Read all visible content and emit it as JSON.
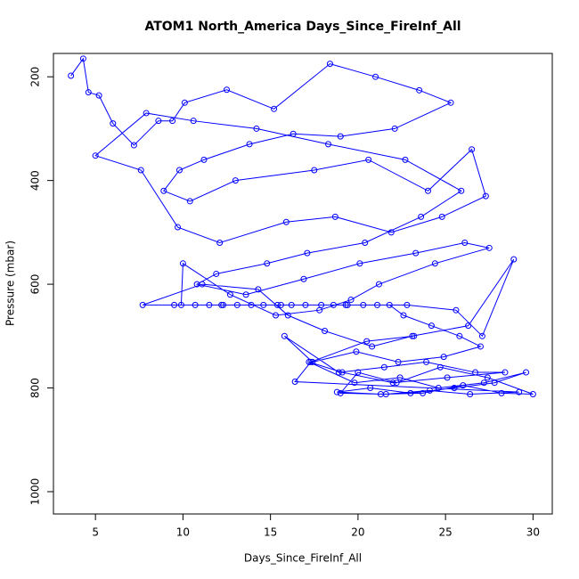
{
  "chart_data": {
    "type": "line",
    "title": "ATOM1 North_America Days_Since_FireInf_All",
    "x_label": "Days_Since_FireInf_All",
    "y_label": "Pressure (mbar)",
    "xlim": [
      2.6,
      31.1
    ],
    "ylim": [
      1043,
      155
    ],
    "xticks": [
      5,
      10,
      15,
      20,
      25,
      30
    ],
    "yticks": [
      200,
      400,
      600,
      800,
      1000
    ],
    "markers": true,
    "x": [
      3.6,
      4.3,
      4.6,
      5.2,
      6.0,
      7.2,
      8.6,
      9.4,
      10.1,
      12.5,
      15.2,
      18.4,
      21.0,
      23.5,
      25.3,
      22.1,
      19.0,
      16.3,
      13.8,
      11.2,
      9.8,
      8.9,
      10.4,
      13.0,
      17.5,
      20.6,
      24.0,
      26.5,
      27.3,
      24.8,
      21.9,
      18.7,
      15.9,
      12.1,
      9.7,
      7.6,
      5.0,
      7.9,
      10.6,
      14.2,
      18.3,
      22.7,
      25.9,
      23.6,
      20.4,
      17.1,
      14.8,
      11.9,
      10.8,
      13.6,
      16.9,
      20.1,
      23.3,
      26.1,
      27.5,
      24.4,
      21.2,
      19.6,
      17.8,
      15.3,
      12.7,
      10.0,
      9.9,
      12.2,
      15.6,
      19.3,
      22.8,
      25.6,
      27.1,
      28.9,
      26.3,
      23.1,
      20.8,
      18.1,
      16.0,
      14.3,
      11.1,
      7.7,
      9.5,
      10.7,
      11.5,
      12.3,
      13.1,
      13.9,
      14.6,
      15.4,
      16.2,
      17.0,
      17.9,
      18.6,
      19.4,
      20.3,
      21.1,
      21.8,
      22.6,
      24.2,
      25.8,
      27.0,
      24.9,
      22.3,
      19.9,
      17.4,
      15.8,
      18.9,
      21.5,
      23.9,
      26.7,
      28.4,
      25.1,
      22.0,
      19.1,
      17.2,
      19.8,
      22.4,
      24.6,
      27.2,
      29.6,
      27.8,
      25.5,
      23.0,
      20.7,
      18.8,
      21.3,
      23.7,
      26.0,
      28.2,
      30.0,
      27.4,
      24.7,
      22.2,
      20.0,
      19.0,
      21.6,
      24.1,
      26.4,
      29.2,
      16.4,
      17.3,
      20.5,
      23.2
    ],
    "series": [
      {
        "color": "#0000ff",
        "values": [
          198,
          165,
          230,
          236,
          290,
          332,
          285,
          285,
          250,
          225,
          262,
          175,
          200,
          226,
          250,
          300,
          315,
          310,
          330,
          360,
          380,
          420,
          440,
          400,
          380,
          360,
          420,
          340,
          430,
          470,
          500,
          470,
          480,
          520,
          490,
          380,
          352,
          270,
          285,
          300,
          330,
          360,
          420,
          470,
          520,
          540,
          560,
          580,
          600,
          620,
          590,
          560,
          540,
          520,
          530,
          560,
          600,
          630,
          650,
          660,
          620,
          560,
          640,
          640,
          640,
          640,
          640,
          650,
          700,
          552,
          680,
          700,
          720,
          690,
          660,
          610,
          600,
          640,
          640,
          640,
          640,
          640,
          640,
          640,
          640,
          640,
          640,
          640,
          640,
          640,
          640,
          640,
          640,
          640,
          660,
          680,
          700,
          720,
          740,
          750,
          730,
          750,
          700,
          770,
          760,
          750,
          770,
          770,
          780,
          790,
          770,
          750,
          790,
          780,
          800,
          790,
          770,
          790,
          800,
          810,
          800,
          808,
          812,
          810,
          795,
          810,
          812,
          780,
          760,
          790,
          770,
          810,
          812,
          805,
          812,
          808,
          788,
          750,
          710,
          700
        ]
      }
    ]
  }
}
